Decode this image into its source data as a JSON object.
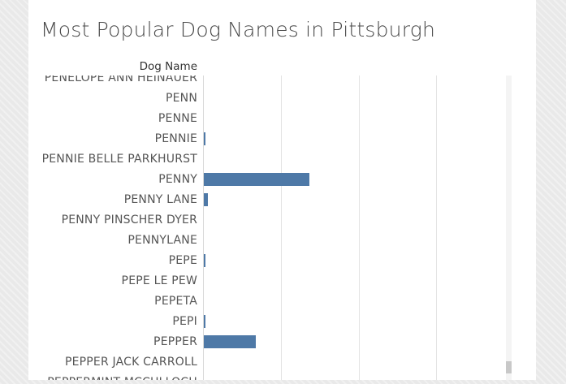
{
  "title": "Most Popular Dog Names in Pittsburgh",
  "column_header": "Dog Name",
  "colors": {
    "bar": "#4e79a7",
    "text": "#555555"
  },
  "chart_data": {
    "type": "bar",
    "orientation": "horizontal",
    "title": "Most Popular Dog Names in Pittsburgh",
    "ylabel": "Dog Name",
    "xlabel": "",
    "grid": true,
    "categories": [
      "PENELOPE ANN HEINAUER",
      "PENN",
      "PENNE",
      "PENNIE",
      "PENNIE BELLE PARKHURST",
      "PENNY",
      "PENNY LANE",
      "PENNY PINSCHER DYER",
      "PENNYLANE",
      "PEPE",
      "PEPE LE PEW",
      "PEPETA",
      "PEPI",
      "PEPPER",
      "PEPPER JACK CARROLL",
      "PEPPERMINT MCCULLOCH"
    ],
    "values": [
      0,
      0,
      0,
      2,
      0,
      130,
      5,
      0,
      0,
      2,
      0,
      0,
      2,
      64,
      0,
      0
    ]
  }
}
